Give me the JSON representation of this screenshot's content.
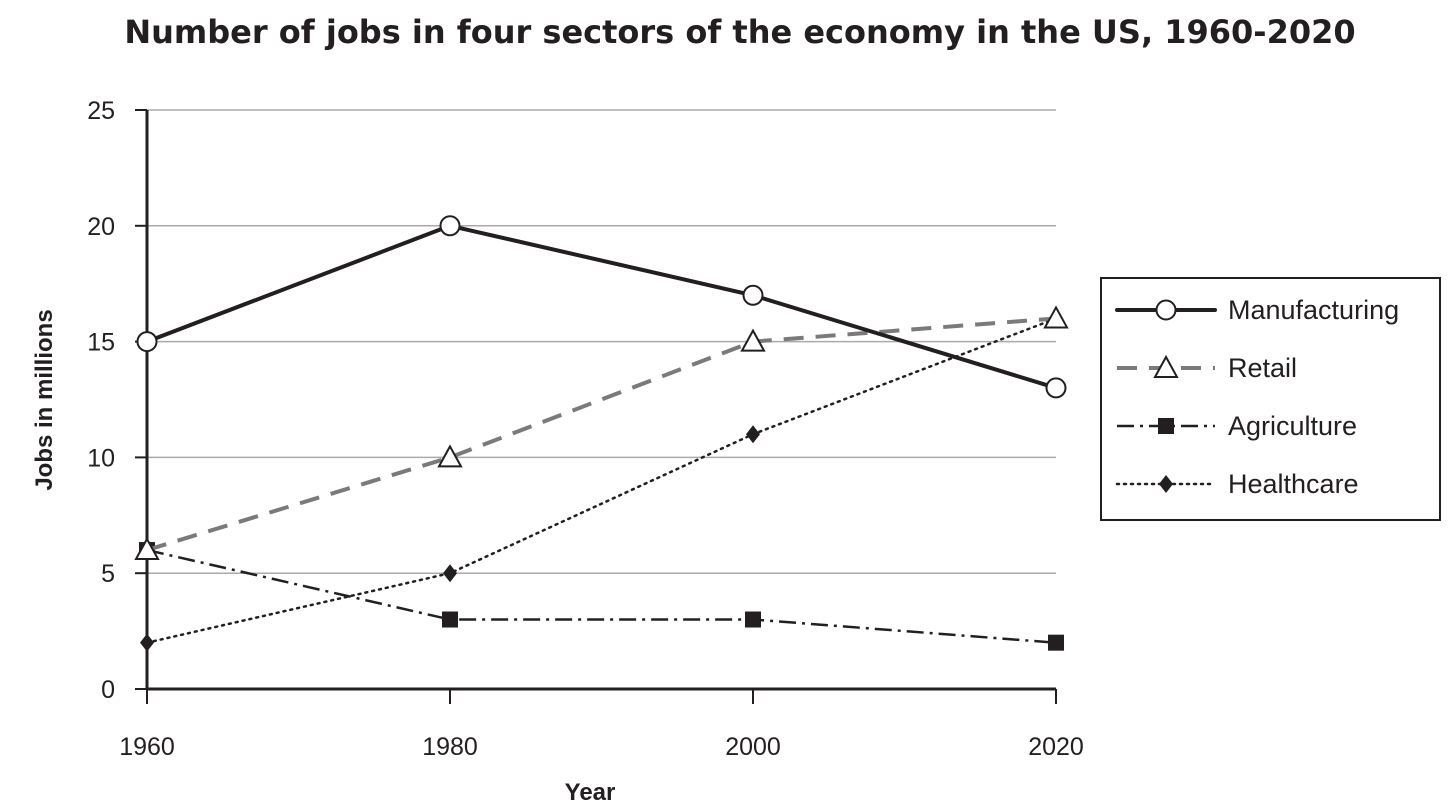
{
  "chart_data": {
    "type": "line",
    "title": "Number of jobs in four sectors of the economy in the US, 1960-2020",
    "xlabel": "Year",
    "ylabel": "Jobs in millions",
    "x": [
      1960,
      1980,
      2000,
      2020
    ],
    "x_tick_labels": [
      "1960",
      "1980",
      "2000",
      "2020"
    ],
    "y_ticks": [
      0,
      5,
      10,
      15,
      20,
      25
    ],
    "y_tick_labels": [
      "0",
      "5",
      "10",
      "15",
      "20",
      "25"
    ],
    "xlim": [
      1960,
      2020
    ],
    "ylim": [
      0,
      25
    ],
    "grid": "horizontal",
    "legend_position": "right",
    "series": [
      {
        "name": "Manufacturing",
        "values": [
          15,
          20,
          17,
          13
        ],
        "color": "#231f20",
        "line_style": "solid",
        "marker": "open-circle"
      },
      {
        "name": "Retail",
        "values": [
          6,
          10,
          15,
          16
        ],
        "color": "#7a7a7a",
        "line_style": "dashed",
        "marker": "open-triangle"
      },
      {
        "name": "Agriculture",
        "values": [
          6,
          3,
          3,
          2
        ],
        "color": "#231f20",
        "line_style": "dash-dot",
        "marker": "filled-square"
      },
      {
        "name": "Healthcare",
        "values": [
          2,
          5,
          11,
          16
        ],
        "color": "#231f20",
        "line_style": "dotted",
        "marker": "filled-diamond"
      }
    ]
  }
}
